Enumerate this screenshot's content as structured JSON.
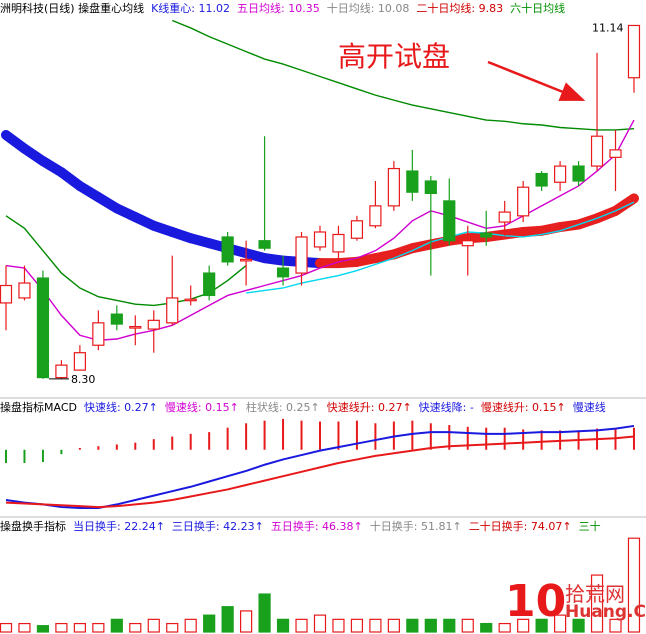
{
  "chart_data": [
    {
      "type": "candlestick",
      "header": [
        {
          "text": "洲明科技(日线) 操盘重心均线",
          "color": "#000000"
        },
        {
          "text": "K线重心: 11.02",
          "color": "#1a1adf"
        },
        {
          "text": "五日均线: 10.35",
          "color": "#d000d0"
        },
        {
          "text": "十日均线: 10.08",
          "color": "#888888"
        },
        {
          "text": "二十日均线: 9.83",
          "color": "#d00000"
        },
        {
          "text": "六十日均线",
          "color": "#009000"
        }
      ],
      "open": [
        8.91,
        8.95,
        9.11,
        8.31,
        8.37,
        8.57,
        8.82,
        8.71,
        8.7,
        8.75,
        8.93,
        9.15,
        9.44,
        9.25,
        9.41,
        9.19,
        9.15,
        9.36,
        9.32,
        9.43,
        9.53,
        9.69,
        9.97,
        9.89,
        9.73,
        9.37,
        9.47,
        9.56,
        9.61,
        9.95,
        9.88,
        10.01,
        10.01,
        10.08,
        10.72
      ],
      "high": [
        9.21,
        9.21,
        9.17,
        8.45,
        8.57,
        8.85,
        8.89,
        8.81,
        8.85,
        9.29,
        9.05,
        9.21,
        9.48,
        9.41,
        10.25,
        9.29,
        9.48,
        9.53,
        9.53,
        9.61,
        9.89,
        10.05,
        10.14,
        9.93,
        9.91,
        9.53,
        9.65,
        9.73,
        9.89,
        9.97,
        10.05,
        10.05,
        10.92,
        10.3,
        11.14
      ],
      "low": [
        8.69,
        8.93,
        8.3,
        8.3,
        8.37,
        8.53,
        8.69,
        8.57,
        8.51,
        8.73,
        8.89,
        8.93,
        9.21,
        9.05,
        9.33,
        9.05,
        9.05,
        9.33,
        9.27,
        9.41,
        9.51,
        9.65,
        9.73,
        9.13,
        9.37,
        9.13,
        9.37,
        9.45,
        9.56,
        9.81,
        9.81,
        9.85,
        9.97,
        9.81,
        10.6
      ],
      "close": [
        9.05,
        9.07,
        8.31,
        8.41,
        8.51,
        8.75,
        8.74,
        8.72,
        8.77,
        8.95,
        8.94,
        8.97,
        9.24,
        9.26,
        9.35,
        9.12,
        9.44,
        9.48,
        9.46,
        9.57,
        9.69,
        9.99,
        9.8,
        9.79,
        9.41,
        9.41,
        9.44,
        9.64,
        9.84,
        9.85,
        10.01,
        9.89,
        10.25,
        10.14,
        11.14
      ],
      "up_color": "#e8191b",
      "down_color": "#19a01d",
      "band": {
        "values": [
          10.26,
          10.15,
          10.05,
          9.96,
          9.85,
          9.76,
          9.67,
          9.6,
          9.53,
          9.48,
          9.43,
          9.39,
          9.35,
          9.31,
          9.27,
          9.25,
          9.24,
          9.23,
          9.23,
          9.24,
          9.27,
          9.3,
          9.35,
          9.38,
          9.41,
          9.43,
          9.44,
          9.46,
          9.48,
          9.49,
          9.52,
          9.54,
          9.59,
          9.65,
          9.75
        ],
        "falling_color": "#1a1adf",
        "rising_color": "#e61f1f"
      },
      "series": [
        {
          "color": "#008a00",
          "values": [
            null,
            null,
            null,
            null,
            null,
            null,
            null,
            null,
            null,
            11.18,
            11.12,
            11.05,
            10.99,
            10.93,
            10.87,
            10.83,
            10.78,
            10.73,
            10.68,
            10.63,
            10.58,
            10.54,
            10.5,
            10.47,
            10.44,
            10.41,
            10.38,
            10.37,
            10.35,
            10.34,
            10.32,
            10.31,
            10.3,
            10.3,
            10.31
          ]
        },
        {
          "color": "#008a00",
          "values": [
            9.61,
            9.51,
            9.33,
            9.15,
            9.03,
            8.96,
            8.93,
            8.9,
            8.89,
            8.91,
            8.94,
            8.99,
            9.09,
            9.21,
            null,
            null,
            null,
            null,
            null,
            null,
            null,
            null,
            null,
            null,
            null,
            null,
            null,
            null,
            null,
            null,
            null,
            null,
            null,
            null,
            null
          ]
        },
        {
          "color": "#d000d0",
          "values": [
            9.21,
            9.19,
            9.01,
            8.81,
            8.65,
            8.61,
            8.62,
            8.66,
            8.69,
            8.73,
            8.81,
            8.89,
            8.97,
            9.01,
            9.05,
            9.09,
            9.13,
            9.19,
            9.24,
            9.27,
            9.33,
            9.43,
            9.57,
            9.65,
            9.61,
            9.56,
            9.51,
            9.53,
            9.61,
            9.69,
            9.77,
            9.85,
            9.97,
            10.1,
            10.38
          ]
        },
        {
          "color": "#00d8f0",
          "values": [
            null,
            null,
            null,
            null,
            null,
            null,
            null,
            null,
            null,
            null,
            null,
            null,
            null,
            8.99,
            9.01,
            9.03,
            9.07,
            9.1,
            9.13,
            9.17,
            9.22,
            9.27,
            9.33,
            9.4,
            9.44,
            9.48,
            9.47,
            9.45,
            9.44,
            9.46,
            9.49,
            9.54,
            9.59,
            9.65,
            9.72
          ]
        }
      ],
      "annotations": [
        {
          "text": "11.14",
          "index": 34
        },
        {
          "text": "8.30",
          "index": 2
        }
      ],
      "callout": "高开试盘",
      "ylim": [
        8.17,
        11.2
      ]
    },
    {
      "type": "macd",
      "header": [
        {
          "text": "操盘指标MACD",
          "color": "#000000"
        },
        {
          "text": "快速线: 0.27↑",
          "color": "#1a1adf"
        },
        {
          "text": "慢速线: 0.15↑",
          "color": "#d000d0"
        },
        {
          "text": "柱状线: 0.25↑",
          "color": "#888888"
        },
        {
          "text": "快速线升: 0.27↑",
          "color": "#d00000"
        },
        {
          "text": "快速线降: -",
          "color": "#1a1adf"
        },
        {
          "text": "慢速线升: 0.15↑",
          "color": "#d00000"
        },
        {
          "text": "慢速线",
          "color": "#1a1adf"
        }
      ],
      "bars": [
        -0.15,
        -0.15,
        -0.14,
        -0.05,
        0.02,
        0.04,
        0.06,
        0.08,
        0.12,
        0.15,
        0.18,
        0.2,
        0.25,
        0.3,
        0.33,
        0.35,
        0.33,
        0.32,
        0.32,
        0.33,
        0.3,
        0.32,
        0.33,
        0.3,
        0.28,
        0.26,
        0.25,
        0.25,
        0.23,
        0.22,
        0.22,
        0.22,
        0.24,
        0.24,
        0.25
      ],
      "up_color": "#e8191b",
      "down_color": "#19a01d",
      "series": [
        {
          "color": "#1a1adf",
          "values": [
            -0.57,
            -0.6,
            -0.62,
            -0.65,
            -0.66,
            -0.66,
            -0.62,
            -0.57,
            -0.52,
            -0.47,
            -0.42,
            -0.36,
            -0.3,
            -0.24,
            -0.17,
            -0.11,
            -0.06,
            -0.01,
            0.03,
            0.07,
            0.11,
            0.15,
            0.18,
            0.2,
            0.2,
            0.19,
            0.18,
            0.18,
            0.19,
            0.2,
            0.2,
            0.21,
            0.22,
            0.24,
            0.27
          ]
        },
        {
          "color": "#e8191b",
          "values": [
            -0.6,
            -0.61,
            -0.62,
            -0.63,
            -0.64,
            -0.65,
            -0.64,
            -0.62,
            -0.6,
            -0.57,
            -0.53,
            -0.49,
            -0.45,
            -0.4,
            -0.35,
            -0.3,
            -0.25,
            -0.2,
            -0.15,
            -0.11,
            -0.07,
            -0.04,
            -0.01,
            0.02,
            0.04,
            0.05,
            0.06,
            0.07,
            0.08,
            0.09,
            0.1,
            0.11,
            0.12,
            0.13,
            0.15
          ]
        }
      ],
      "ylim": [
        -0.74,
        0.36
      ]
    },
    {
      "type": "volume",
      "header": [
        {
          "text": "操盘换手指标",
          "color": "#000000"
        },
        {
          "text": "当日换手: 22.24↑",
          "color": "#1a1adf"
        },
        {
          "text": "三日换手: 42.23↑",
          "color": "#1a1adf"
        },
        {
          "text": "五日换手: 46.38↑",
          "color": "#d000d0"
        },
        {
          "text": "十日换手: 51.81↑",
          "color": "#888888"
        },
        {
          "text": "二十日换手: 74.07↑",
          "color": "#d00000"
        },
        {
          "text": "三十",
          "color": "#009000"
        }
      ],
      "values": [
        2,
        2,
        1.5,
        2,
        2,
        2,
        3,
        2,
        3,
        2,
        3,
        4,
        6,
        5,
        9,
        3,
        3,
        4,
        3,
        3,
        3,
        3,
        3,
        3,
        3,
        3,
        2,
        2,
        3,
        3,
        4,
        3,
        13.5,
        3,
        22.24
      ],
      "ylim": [
        0,
        23
      ]
    }
  ],
  "watermark": {
    "logo": "10",
    "name": "拾荒网",
    "url": "Huang.CN"
  }
}
